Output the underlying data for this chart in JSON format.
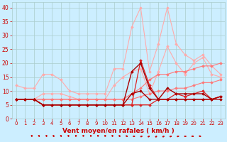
{
  "x": [
    0,
    1,
    2,
    3,
    4,
    5,
    6,
    7,
    8,
    9,
    10,
    11,
    12,
    13,
    14,
    15,
    16,
    17,
    18,
    19,
    20,
    21,
    22,
    23
  ],
  "series": [
    {
      "color": "#FFAAAA",
      "lw": 0.8,
      "marker": "D",
      "ms": 1.8,
      "values": [
        12,
        11,
        11,
        16,
        16,
        14,
        10,
        9,
        9,
        9,
        9,
        18,
        18,
        33,
        40,
        17,
        27,
        40,
        27,
        23,
        21,
        23,
        19,
        16
      ]
    },
    {
      "color": "#FFAAAA",
      "lw": 0.8,
      "marker": "D",
      "ms": 1.8,
      "values": [
        7,
        7,
        7,
        9,
        9,
        9,
        8,
        7,
        7,
        7,
        7,
        12,
        15,
        17,
        18,
        9,
        17,
        26,
        20,
        16,
        20,
        22,
        16,
        15
      ]
    },
    {
      "color": "#FF7777",
      "lw": 0.8,
      "marker": "D",
      "ms": 1.8,
      "values": [
        7,
        7,
        7,
        7,
        7,
        7,
        7,
        7,
        7,
        7,
        7,
        7,
        7,
        9,
        11,
        14,
        16,
        16,
        17,
        17,
        18,
        19,
        19,
        20
      ]
    },
    {
      "color": "#FF7777",
      "lw": 0.8,
      "marker": "D",
      "ms": 1.8,
      "values": [
        7,
        7,
        7,
        7,
        7,
        7,
        7,
        7,
        7,
        7,
        7,
        7,
        7,
        7,
        8,
        9,
        10,
        10,
        11,
        11,
        12,
        13,
        13,
        14
      ]
    },
    {
      "color": "#DD2222",
      "lw": 0.9,
      "marker": "D",
      "ms": 1.8,
      "values": [
        7,
        7,
        7,
        5,
        5,
        5,
        5,
        5,
        5,
        5,
        5,
        5,
        5,
        5,
        5,
        5,
        7,
        7,
        7,
        7,
        7,
        7,
        7,
        8
      ]
    },
    {
      "color": "#DD2222",
      "lw": 0.9,
      "marker": "D",
      "ms": 1.8,
      "values": [
        7,
        7,
        7,
        5,
        5,
        5,
        5,
        5,
        5,
        5,
        5,
        5,
        5,
        5,
        21,
        12,
        7,
        7,
        9,
        8,
        9,
        10,
        7,
        8
      ]
    },
    {
      "color": "#AA0000",
      "lw": 1.0,
      "marker": "D",
      "ms": 1.8,
      "values": [
        7,
        7,
        7,
        5,
        5,
        5,
        5,
        5,
        5,
        5,
        5,
        5,
        5,
        17,
        20,
        11,
        7,
        11,
        9,
        9,
        9,
        9,
        7,
        8
      ]
    },
    {
      "color": "#AA0000",
      "lw": 1.0,
      "marker": "D",
      "ms": 1.8,
      "values": [
        7,
        7,
        7,
        5,
        5,
        5,
        5,
        5,
        5,
        5,
        5,
        5,
        5,
        9,
        10,
        7,
        7,
        7,
        7,
        7,
        7,
        7,
        7,
        7
      ]
    }
  ],
  "wind_dirs": [
    200,
    210,
    200,
    220,
    210,
    200,
    190,
    180,
    170,
    180,
    190,
    200,
    220,
    240,
    270,
    290,
    300,
    310,
    300,
    290,
    280,
    270,
    260,
    250
  ],
  "xlabel": "Vent moyen/en rafales ( km/h )",
  "bg_color": "#CCEEFF",
  "grid_color": "#AACCCC",
  "xlim": [
    -0.5,
    23.5
  ],
  "ylim": [
    0,
    42
  ],
  "yticks": [
    0,
    5,
    10,
    15,
    20,
    25,
    30,
    35,
    40
  ],
  "xticks": [
    0,
    1,
    2,
    3,
    4,
    5,
    6,
    7,
    8,
    9,
    10,
    11,
    12,
    13,
    14,
    15,
    16,
    17,
    18,
    19,
    20,
    21,
    22,
    23
  ],
  "tick_color": "#CC0000",
  "label_color": "#CC0000",
  "xlabel_fontsize": 6.5,
  "ytick_fontsize": 5.5,
  "xtick_fontsize": 5.0
}
